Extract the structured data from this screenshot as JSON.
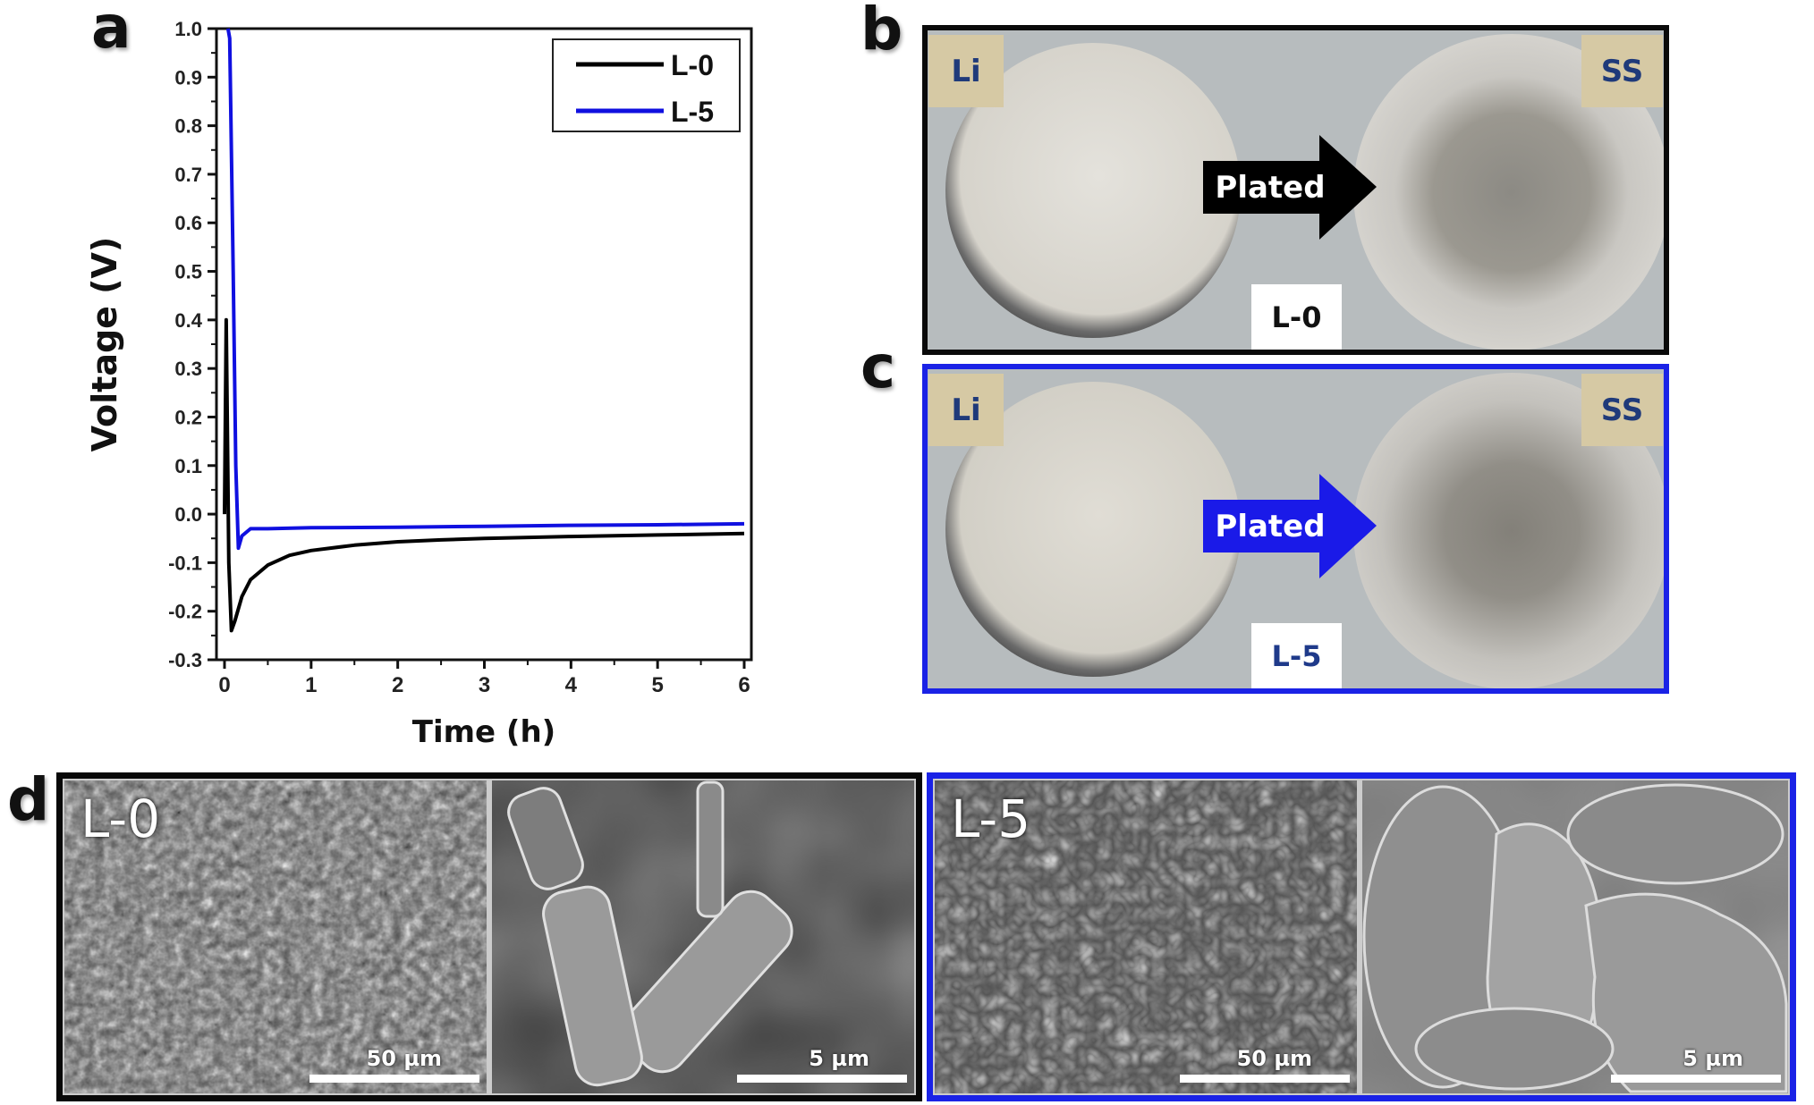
{
  "panels": {
    "a": "a",
    "b": "b",
    "c": "c",
    "d": "d"
  },
  "chart_data": {
    "type": "line",
    "xlabel": "Time (h)",
    "ylabel": "Voltage (V)",
    "xlim": [
      0,
      6
    ],
    "ylim": [
      -0.3,
      1.0
    ],
    "xticks": [
      "0",
      "1",
      "2",
      "3",
      "4",
      "5",
      "6"
    ],
    "yticks": [
      "-0.3",
      "-0.2",
      "-0.1",
      "0.0",
      "0.1",
      "0.2",
      "0.3",
      "0.4",
      "0.5",
      "0.6",
      "0.7",
      "0.8",
      "0.9",
      "1.0"
    ],
    "grid": false,
    "legend": "top-right",
    "series": [
      {
        "name": "L-0",
        "color": "#000000",
        "x": [
          0.0,
          0.02,
          0.05,
          0.08,
          0.12,
          0.2,
          0.3,
          0.5,
          0.75,
          1.0,
          1.5,
          2.0,
          2.5,
          3.0,
          4.0,
          5.0,
          6.0
        ],
        "y": [
          0.0,
          0.4,
          -0.1,
          -0.24,
          -0.22,
          -0.17,
          -0.135,
          -0.105,
          -0.085,
          -0.075,
          -0.064,
          -0.057,
          -0.053,
          -0.05,
          -0.046,
          -0.043,
          -0.04
        ]
      },
      {
        "name": "L-5",
        "color": "#1010e0",
        "x": [
          0.04,
          0.06,
          0.1,
          0.13,
          0.16,
          0.2,
          0.3,
          0.5,
          1.0,
          2.0,
          3.0,
          4.0,
          5.0,
          6.0
        ],
        "y": [
          1.0,
          0.98,
          0.5,
          0.1,
          -0.07,
          -0.045,
          -0.03,
          -0.03,
          -0.028,
          -0.027,
          -0.025,
          -0.023,
          -0.022,
          -0.02
        ]
      }
    ]
  },
  "photo_b": {
    "left_tag": "Li",
    "right_tag": "SS",
    "arrow": "Plated",
    "sample": "L-0",
    "arrow_color": "#000000",
    "sample_color": "#111111"
  },
  "photo_c": {
    "left_tag": "Li",
    "right_tag": "SS",
    "arrow": "Plated",
    "sample": "L-5",
    "arrow_color": "#1a1ae8",
    "sample_color": "#1f3a8a"
  },
  "sem_l0": {
    "label": "L-0",
    "scale_low": "50 µm",
    "scale_high": "5 µm"
  },
  "sem_l5": {
    "label": "L-5",
    "scale_low": "50 µm",
    "scale_high": "5 µm"
  }
}
